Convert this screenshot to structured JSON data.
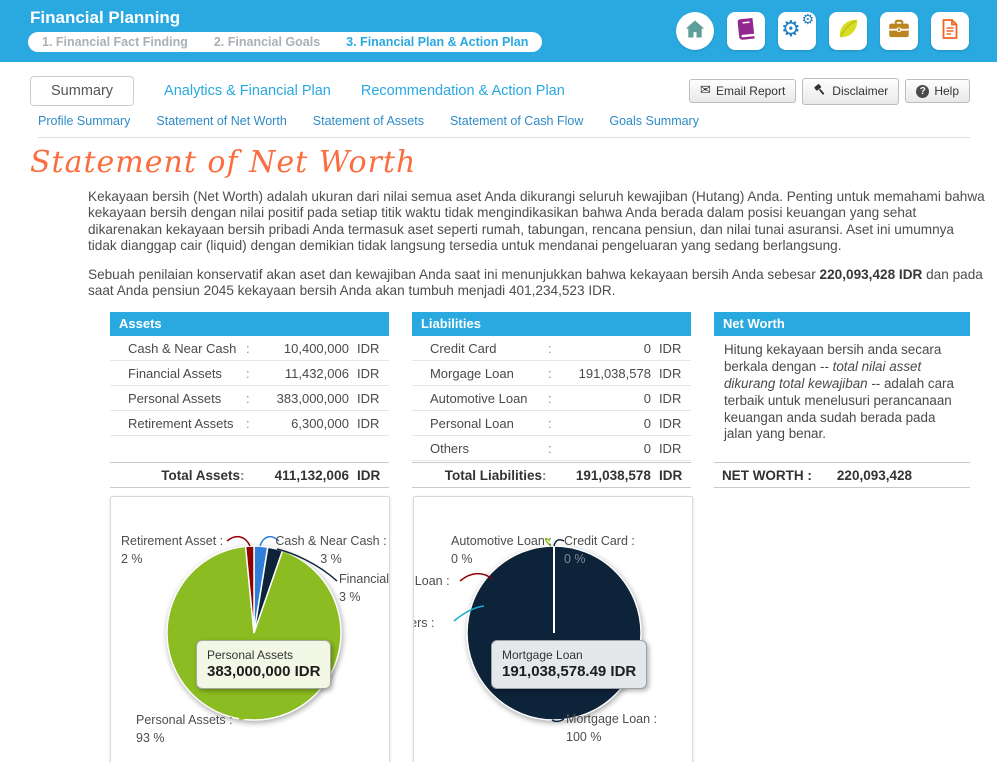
{
  "header": {
    "title": "Financial Planning",
    "steps": [
      {
        "label": "1. Financial Fact Finding",
        "active": false
      },
      {
        "label": "2. Financial Goals",
        "active": false
      },
      {
        "label": "3. Financial Plan & Action Plan",
        "active": true
      }
    ],
    "icons": [
      "home-icon",
      "book-icon",
      "settings-gears-icon",
      "leaf-icon",
      "briefcase-icon",
      "report-document-icon"
    ],
    "accent_color": "#29A9E0"
  },
  "toolbar": {
    "email_report": "Email Report",
    "disclaimer": "Disclaimer",
    "help": "Help",
    "icons": [
      "email-icon",
      "gavel-icon",
      "help-icon"
    ]
  },
  "tabs": [
    {
      "label": "Summary",
      "active": true
    },
    {
      "label": "Analytics & Financial Plan",
      "active": false
    },
    {
      "label": "Recommendation & Action Plan",
      "active": false
    }
  ],
  "subnav": [
    "Profile Summary",
    "Statement of Net Worth",
    "Statement of Assets",
    "Statement of Cash Flow",
    "Goals Summary"
  ],
  "page": {
    "title": "Statement of Net Worth",
    "title_color": "#FB6D3F",
    "intro": "Kekayaan bersih (Net Worth) adalah ukuran dari nilai semua aset Anda dikurangi seluruh kewajiban (Hutang) Anda. Penting untuk memahami bahwa kekayaan bersih dengan nilai positif pada setiap titik waktu tidak mengindikasikan bahwa Anda berada dalam posisi keuangan yang sehat dikarenakan kekayaan bersih pribadi Anda termasuk aset seperti rumah, tabungan, rencana pensiun, dan nilai tunai asuransi. Aset ini umumnya tidak dianggap cair (liquid) dengan demikian tidak langsung tersedia untuk mendanai pengeluaran yang sedang berlangsung.",
    "summary_before": "Sebuah penilaian konservatif akan aset dan kewajiban Anda saat ini menunjukkan bahwa kekayaan bersih Anda sebesar ",
    "summary_bold": "220,093,428 IDR",
    "summary_after": " dan pada saat Anda pensiun 2045 kekayaan bersih Anda akan tumbuh menjadi 401,234,523 IDR."
  },
  "assets_panel": {
    "title": "Assets",
    "rows": [
      {
        "label": "Cash & Near Cash",
        "value": "10,400,000",
        "unit": "IDR"
      },
      {
        "label": "Financial Assets",
        "value": "11,432,006",
        "unit": "IDR"
      },
      {
        "label": "Personal Assets",
        "value": "383,000,000",
        "unit": "IDR"
      },
      {
        "label": "Retirement Assets",
        "value": "6,300,000",
        "unit": "IDR"
      }
    ],
    "total_label": "Total Assets",
    "total_value": "411,132,006",
    "total_unit": "IDR"
  },
  "liabilities_panel": {
    "title": "Liabilities",
    "rows": [
      {
        "label": "Credit Card",
        "value": "0",
        "unit": "IDR"
      },
      {
        "label": "Morgage Loan",
        "value": "191,038,578",
        "unit": "IDR"
      },
      {
        "label": "Automotive Loan",
        "value": "0",
        "unit": "IDR"
      },
      {
        "label": "Personal Loan",
        "value": "0",
        "unit": "IDR"
      },
      {
        "label": "Others",
        "value": "0",
        "unit": "IDR"
      }
    ],
    "total_label": "Total Liabilities",
    "total_value": "191,038,578",
    "total_unit": "IDR"
  },
  "networth_panel": {
    "title": "Net Worth",
    "desc_before": "Hitung kekayaan bersih anda secara berkala dengan -- ",
    "desc_italic": "total nilai asset dikurang total kewajiban",
    "desc_after": " -- adalah cara terbaik untuk menelusuri perancanaan keuangan anda sudah berada pada jalan yang benar.",
    "total_label": "NET WORTH :",
    "total_value": "220,093,428"
  },
  "chart_data": [
    {
      "type": "pie",
      "name": "Assets Allocation",
      "slices": [
        {
          "label": "Cash & Near Cash",
          "value": 10400000,
          "pct": "3 %",
          "color": "#2f7ed8"
        },
        {
          "label": "Financial Assets",
          "value": 11432006,
          "pct": "3 %",
          "color": "#0d233a"
        },
        {
          "label": "Personal Assets",
          "value": 383000000,
          "pct": "93 %",
          "color": "#8bbc21"
        },
        {
          "label": "Retirement Asset",
          "value": 6300000,
          "pct": "2 %",
          "color": "#910000"
        }
      ],
      "callouts": [
        {
          "text": "Retirement Asset :",
          "pct": "2 %"
        },
        {
          "text": "Cash & Near Cash :",
          "pct": "3 %"
        },
        {
          "text": "Financial Assets :",
          "pct": "3 %"
        },
        {
          "text": "Personal Assets :",
          "pct": "93 %"
        }
      ],
      "tooltip": {
        "title": "Personal Assets",
        "value": "383,000,000 IDR"
      },
      "legend": false
    },
    {
      "type": "pie",
      "name": "Liabilities Allocation",
      "slices": [
        {
          "label": "Credit Card",
          "value": 0,
          "pct": "0 %",
          "color": "#2f7ed8"
        },
        {
          "label": "Mortgage Loan",
          "value": 191038578.49,
          "pct": "100 %",
          "color": "#0d233a"
        },
        {
          "label": "Automotive Loan",
          "value": 0,
          "pct": "0 %",
          "color": "#8bbc21"
        },
        {
          "label": "Personal Loan",
          "value": 0,
          "pct": "0 %",
          "color": "#910000"
        },
        {
          "label": "Others",
          "value": 0,
          "pct": "0 %",
          "color": "#1aadce"
        }
      ],
      "callouts": [
        {
          "text": "Automotive Loan :",
          "pct": "0 %"
        },
        {
          "text": "Credit Card :",
          "pct": "0 %"
        },
        {
          "text": "Personal Loan :",
          "pct": "0 %"
        },
        {
          "text": "Others :",
          "pct": "0 %"
        },
        {
          "text": "Mortgage Loan :",
          "pct": "100 %"
        }
      ],
      "tooltip": {
        "title": "Mortgage Loan",
        "value": "191,038,578.49 IDR"
      },
      "legend": false
    }
  ]
}
